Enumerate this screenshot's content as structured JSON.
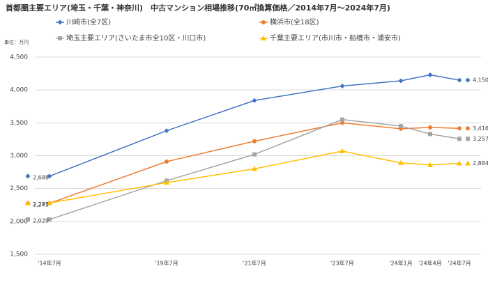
{
  "chart_data": {
    "type": "line",
    "title": "首都圏主要エリア(埼玉・千葉・神奈川)　中古マンション相場推移(70㎡換算価格／2014年7月～2024年7月)",
    "y_unit": "単位：万円",
    "categories": [
      "'14年7月",
      null,
      null,
      null,
      "'19年7月",
      null,
      null,
      "'21年7月",
      null,
      null,
      "'23年7月",
      null,
      "'24年1月",
      "'24年4月",
      "'24年7月"
    ],
    "series": [
      {
        "name": "川崎市(全7区)",
        "color": "#4472c4",
        "marker": "diamond",
        "values": [
          2688,
          null,
          null,
          null,
          3380,
          null,
          null,
          3840,
          null,
          null,
          4060,
          null,
          4140,
          4230,
          4150
        ],
        "value_labels": [
          "2,688",
          null,
          null,
          null,
          null,
          null,
          null,
          null,
          null,
          null,
          null,
          null,
          null,
          null,
          "4,150"
        ]
      },
      {
        "name": "横浜市(全18区)",
        "color": "#ed7d31",
        "marker": "circle",
        "values": [
          2275,
          null,
          null,
          null,
          2910,
          null,
          null,
          3220,
          null,
          null,
          3500,
          null,
          3410,
          3430,
          3416
        ],
        "value_labels": [
          "2,275",
          null,
          null,
          null,
          null,
          null,
          null,
          null,
          null,
          null,
          null,
          null,
          null,
          null,
          "3,416"
        ]
      },
      {
        "name": "埼玉主要エリア(さいたま市全10区・川口市)",
        "color": "#a5a5a5",
        "marker": "square",
        "values": [
          2029,
          null,
          null,
          null,
          2620,
          null,
          null,
          3020,
          null,
          null,
          3550,
          null,
          3450,
          3330,
          3257
        ],
        "value_labels": [
          "2,029",
          null,
          null,
          null,
          null,
          null,
          null,
          null,
          null,
          null,
          null,
          null,
          null,
          null,
          "3,257"
        ]
      },
      {
        "name": "千葉主要エリア(市川市・船橋市・浦安市)",
        "color": "#ffc000",
        "marker": "triangle",
        "values": [
          2281,
          null,
          null,
          null,
          2590,
          null,
          null,
          2800,
          null,
          null,
          3070,
          null,
          2890,
          2860,
          2884
        ],
        "value_labels": [
          "2,281",
          null,
          null,
          null,
          null,
          null,
          null,
          null,
          null,
          null,
          null,
          null,
          null,
          null,
          "2,884"
        ]
      }
    ],
    "ylim": [
      1500,
      4500
    ],
    "yticks": [
      {
        "value": 1500,
        "label": "1,500"
      },
      {
        "value": 2000,
        "label": "2,000"
      },
      {
        "value": 2500,
        "label": "2,500"
      },
      {
        "value": 3000,
        "label": "3,000"
      },
      {
        "value": 3500,
        "label": "3,500"
      },
      {
        "value": 4000,
        "label": "4,000"
      },
      {
        "value": 4500,
        "label": "4,500"
      }
    ],
    "grid": true
  }
}
